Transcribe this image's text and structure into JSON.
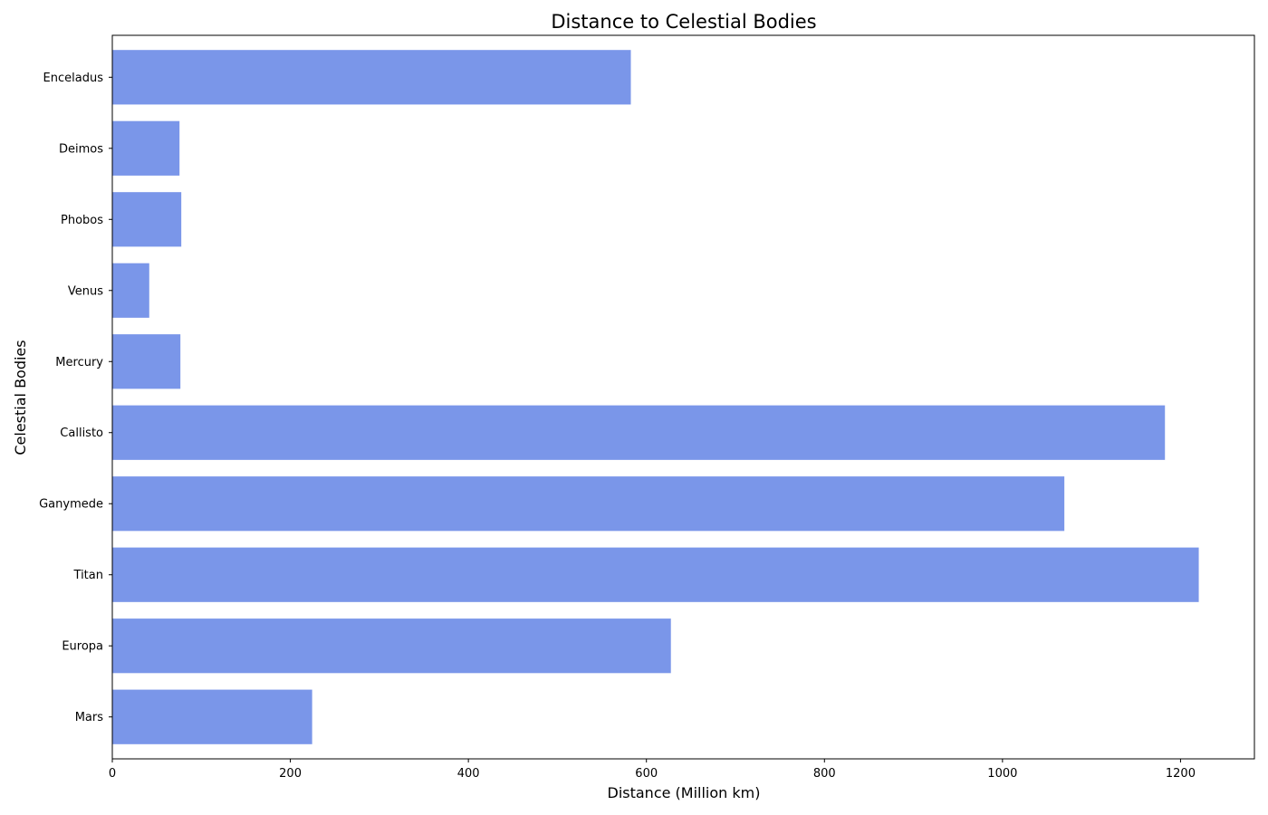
{
  "chart_data": {
    "type": "bar",
    "orientation": "horizontal",
    "title": "Distance to Celestial Bodies",
    "xlabel": "Distance (Million km)",
    "ylabel": "Celestial Bodies",
    "categories": [
      "Mars",
      "Europa",
      "Titan",
      "Ganymede",
      "Callisto",
      "Mercury",
      "Venus",
      "Phobos",
      "Deimos",
      "Enceladus"
    ],
    "values": [
      225,
      628,
      1221,
      1070,
      1183,
      77,
      42,
      78,
      76,
      583
    ],
    "xlim": [
      0,
      1283
    ],
    "xticks": [
      0,
      200,
      400,
      600,
      800,
      1000,
      1200
    ],
    "grid": false,
    "legend": "none",
    "bar_color": "#7a96e9",
    "bar_edge_color": "#ffffff"
  }
}
